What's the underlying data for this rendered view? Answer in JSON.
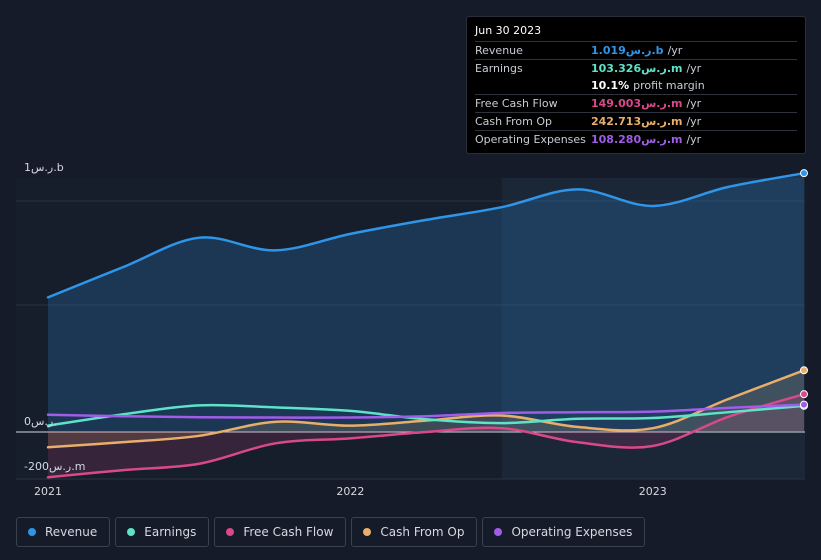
{
  "tooltip": {
    "date": "Jun 30 2023",
    "rows": [
      {
        "label": "Revenue",
        "value": "1.019ر.س.b",
        "unit": "/yr",
        "color": "#2f95e8"
      },
      {
        "label": "Earnings",
        "value": "103.326ر.س.m",
        "unit": "/yr",
        "color": "#5ee3c8"
      },
      {
        "label": "",
        "value": "10.1%",
        "unit": "profit margin",
        "color": "#ffffff"
      },
      {
        "label": "Free Cash Flow",
        "value": "149.003ر.س.m",
        "unit": "/yr",
        "color": "#d9498a"
      },
      {
        "label": "Cash From Op",
        "value": "242.713ر.س.m",
        "unit": "/yr",
        "color": "#e8ae6a"
      },
      {
        "label": "Operating Expenses",
        "value": "108.280ر.س.m",
        "unit": "/yr",
        "color": "#a15ce8"
      }
    ]
  },
  "legend": [
    {
      "label": "Revenue",
      "color": "#2f95e8"
    },
    {
      "label": "Earnings",
      "color": "#5ee3c8"
    },
    {
      "label": "Free Cash Flow",
      "color": "#d9498a"
    },
    {
      "label": "Cash From Op",
      "color": "#e8ae6a"
    },
    {
      "label": "Operating Expenses",
      "color": "#a15ce8"
    }
  ],
  "chart_data": {
    "type": "line",
    "title": "",
    "y_unit_labels": [
      "1ر.س.b",
      "0ر.س.",
      "-200ر.س.m"
    ],
    "y_ticks": [
      1000,
      0,
      -200
    ],
    "ylim": [
      -200,
      1000
    ],
    "xlim": [
      2021.0,
      2023.5
    ],
    "x_ticks": [
      2021,
      2022,
      2023
    ],
    "x_tick_labels": [
      "2021",
      "2022",
      "2023"
    ],
    "highlight_from": 2022.5,
    "series": [
      {
        "name": "Revenue",
        "color": "#2f95e8",
        "fill": true,
        "x": [
          2021.0,
          2021.25,
          2021.5,
          2021.75,
          2022.0,
          2022.25,
          2022.5,
          2022.75,
          2023.0,
          2023.25,
          2023.5
        ],
        "y": [
          530,
          650,
          765,
          715,
          780,
          835,
          885,
          955,
          890,
          965,
          1019
        ]
      },
      {
        "name": "Earnings",
        "color": "#5ee3c8",
        "fill": false,
        "x": [
          2021.0,
          2021.25,
          2021.5,
          2021.75,
          2022.0,
          2022.25,
          2022.5,
          2022.75,
          2023.0,
          2023.25,
          2023.5
        ],
        "y": [
          25,
          70,
          105,
          97,
          83,
          50,
          35,
          52,
          55,
          78,
          103
        ]
      },
      {
        "name": "Free Cash Flow",
        "color": "#d9498a",
        "fill": true,
        "x": [
          2021.0,
          2021.25,
          2021.5,
          2021.75,
          2022.0,
          2022.25,
          2022.5,
          2022.75,
          2023.0,
          2023.25,
          2023.5
        ],
        "y": [
          -178,
          -150,
          -125,
          -45,
          -25,
          0,
          15,
          -40,
          -55,
          60,
          149
        ]
      },
      {
        "name": "Cash From Op",
        "color": "#e8ae6a",
        "fill": true,
        "x": [
          2021.0,
          2021.25,
          2021.5,
          2021.75,
          2022.0,
          2022.25,
          2022.5,
          2022.75,
          2023.0,
          2023.25,
          2023.5
        ],
        "y": [
          -60,
          -40,
          -15,
          40,
          25,
          45,
          65,
          20,
          15,
          130,
          243
        ]
      },
      {
        "name": "Operating Expenses",
        "color": "#a15ce8",
        "fill": false,
        "x": [
          2021.0,
          2021.25,
          2021.5,
          2021.75,
          2022.0,
          2022.25,
          2022.5,
          2022.75,
          2023.0,
          2023.25,
          2023.5
        ],
        "y": [
          68,
          62,
          58,
          57,
          57,
          62,
          75,
          78,
          80,
          95,
          108
        ]
      }
    ]
  }
}
